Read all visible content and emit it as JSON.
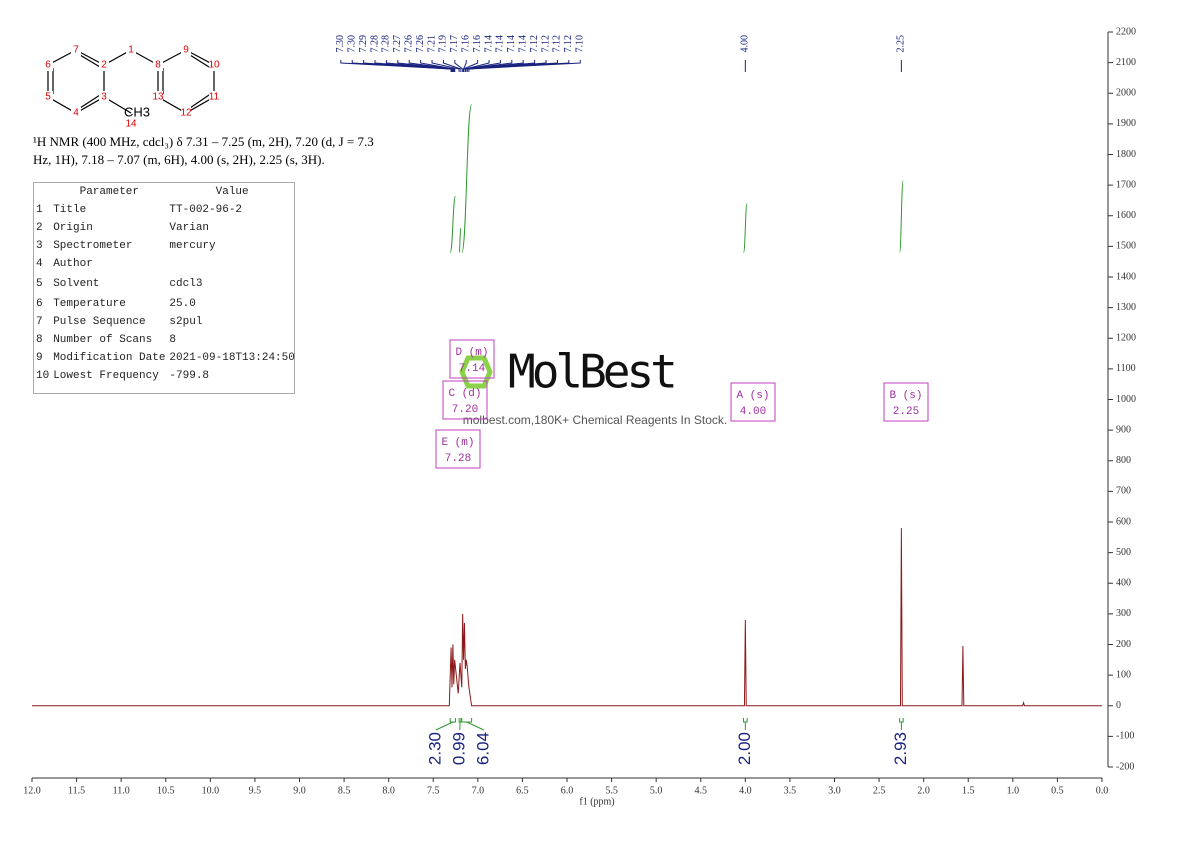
{
  "molecule": {
    "atoms": [
      "1",
      "2",
      "3",
      "4",
      "5",
      "6",
      "7",
      "8",
      "9",
      "10",
      "11",
      "12",
      "13",
      "14"
    ],
    "group": "CH3"
  },
  "description": "¹H NMR (400 MHz, cdcl₃) δ 7.31 – 7.25 (m, 2H), 7.20 (d, J = 7.3 Hz, 1H), 7.18 – 7.07 (m, 6H), 4.00 (s, 2H), 2.25 (s, 3H).",
  "table": {
    "header": [
      "Parameter",
      "Value"
    ],
    "rows": [
      [
        "1",
        "Title",
        "TT-002-96-2"
      ],
      [
        "2",
        "Origin",
        "Varian"
      ],
      [
        "3",
        "Spectrometer",
        "mercury"
      ],
      [
        "4",
        "Author",
        ""
      ],
      [
        "5",
        "Solvent",
        "cdcl3"
      ],
      [
        "6",
        "Temperature",
        "25.0"
      ],
      [
        "7",
        "Pulse Sequence",
        "s2pul"
      ],
      [
        "8",
        "Number of Scans",
        "8"
      ],
      [
        "9",
        "Modification Date",
        "2021-09-18T13:24:50"
      ],
      [
        "10",
        "Lowest Frequency",
        "-799.8"
      ]
    ]
  },
  "watermark": {
    "brand": "MolBest",
    "tagline": "molbest.com,180K+ Chemical Reagents In Stock."
  },
  "chart_data": {
    "type": "nmr",
    "x_label": "f1 (ppm)",
    "xlim": [
      12,
      0
    ],
    "ylim": [
      -200,
      2200
    ],
    "xticks": [
      {
        "value": 12,
        "label": "12.0"
      },
      {
        "value": 11.5,
        "label": "11.5"
      },
      {
        "value": 11,
        "label": "11.0"
      },
      {
        "value": 10.5,
        "label": "10.5"
      },
      {
        "value": 10,
        "label": "10.0"
      },
      {
        "value": 9.5,
        "label": "9.5"
      },
      {
        "value": 9,
        "label": "9.0"
      },
      {
        "value": 8.5,
        "label": "8.5"
      },
      {
        "value": 8,
        "label": "8.0"
      },
      {
        "value": 7.5,
        "label": "7.5"
      },
      {
        "value": 7,
        "label": "7.0"
      },
      {
        "value": 6.5,
        "label": "6.5"
      },
      {
        "value": 6,
        "label": "6.0"
      },
      {
        "value": 5.5,
        "label": "5.5"
      },
      {
        "value": 5,
        "label": "5.0"
      },
      {
        "value": 4.5,
        "label": "4.5"
      },
      {
        "value": 4,
        "label": "4.0"
      },
      {
        "value": 3.5,
        "label": "3.5"
      },
      {
        "value": 3,
        "label": "3.0"
      },
      {
        "value": 2.5,
        "label": "2.5"
      },
      {
        "value": 2,
        "label": "2.0"
      },
      {
        "value": 1.5,
        "label": "1.5"
      },
      {
        "value": 1,
        "label": "1.0"
      },
      {
        "value": 0.5,
        "label": "0.5"
      },
      {
        "value": 0,
        "label": "0.0"
      }
    ],
    "yticks": [
      -200,
      -100,
      0,
      100,
      200,
      300,
      400,
      500,
      600,
      700,
      800,
      900,
      1000,
      1100,
      1200,
      1300,
      1400,
      1500,
      1600,
      1700,
      1800,
      1900,
      2000,
      2100,
      2200
    ],
    "series": [
      {
        "color": "#8b1a1a",
        "x": [
          12,
          7.32,
          7.3,
          7.29,
          7.28,
          7.27,
          7.26,
          7.22,
          7.2,
          7.18,
          7.17,
          7.16,
          7.15,
          7.14,
          7.13,
          7.12,
          7.1,
          7.07,
          4.01,
          4.0,
          3.99,
          2.26,
          2.25,
          2.24,
          1.57,
          1.56,
          1.55,
          0.89,
          0.88,
          0.87,
          0
        ],
        "values": [
          0,
          0,
          190,
          60,
          200,
          70,
          150,
          40,
          140,
          60,
          300,
          150,
          270,
          120,
          150,
          130,
          60,
          0,
          0,
          280,
          0,
          0,
          580,
          0,
          0,
          195,
          0,
          0,
          10,
          0,
          0
        ]
      }
    ],
    "peak_labels": [
      {
        "value": 7.3,
        "label": "7.30"
      },
      {
        "value": 7.3,
        "label": "7.30"
      },
      {
        "value": 7.29,
        "label": "7.29"
      },
      {
        "value": 7.28,
        "label": "7.28"
      },
      {
        "value": 7.28,
        "label": "7.28"
      },
      {
        "value": 7.27,
        "label": "7.27"
      },
      {
        "value": 7.26,
        "label": "7.26"
      },
      {
        "value": 7.26,
        "label": "7.26"
      },
      {
        "value": 7.21,
        "label": "7.21"
      },
      {
        "value": 7.19,
        "label": "7.19"
      },
      {
        "value": 7.17,
        "label": "7.17"
      },
      {
        "value": 7.16,
        "label": "7.16"
      },
      {
        "value": 7.16,
        "label": "7.16"
      },
      {
        "value": 7.14,
        "label": "7.14"
      },
      {
        "value": 7.14,
        "label": "7.14"
      },
      {
        "value": 7.14,
        "label": "7.14"
      },
      {
        "value": 7.14,
        "label": "7.14"
      },
      {
        "value": 7.12,
        "label": "7.12"
      },
      {
        "value": 7.12,
        "label": "7.12"
      },
      {
        "value": 7.12,
        "label": "7.12"
      },
      {
        "value": 7.12,
        "label": "7.12"
      },
      {
        "value": 7.1,
        "label": "7.10"
      },
      {
        "value": 4,
        "label": "4.00"
      },
      {
        "value": 2.25,
        "label": "2.25"
      }
    ],
    "integrals": {
      "ranges": [
        [
          7.31,
          7.25
        ],
        [
          7.21,
          7.19
        ],
        [
          7.18,
          7.07
        ],
        [
          4.02,
          3.98
        ],
        [
          2.27,
          2.23
        ]
      ],
      "values": [
        2.3,
        0.99,
        6.04,
        2,
        2.93
      ],
      "value_labels": [
        "2.30",
        "0.99",
        "6.04",
        "2.00",
        "2.93"
      ]
    },
    "multiplets": [
      {
        "label": "D (m)",
        "shift": "7.14"
      },
      {
        "label": "C (d)",
        "shift": "7.20"
      },
      {
        "label": "E (m)",
        "shift": "7.28"
      },
      {
        "label": "A (s)",
        "shift": "4.00"
      },
      {
        "label": "B (s)",
        "shift": "2.25"
      }
    ]
  }
}
